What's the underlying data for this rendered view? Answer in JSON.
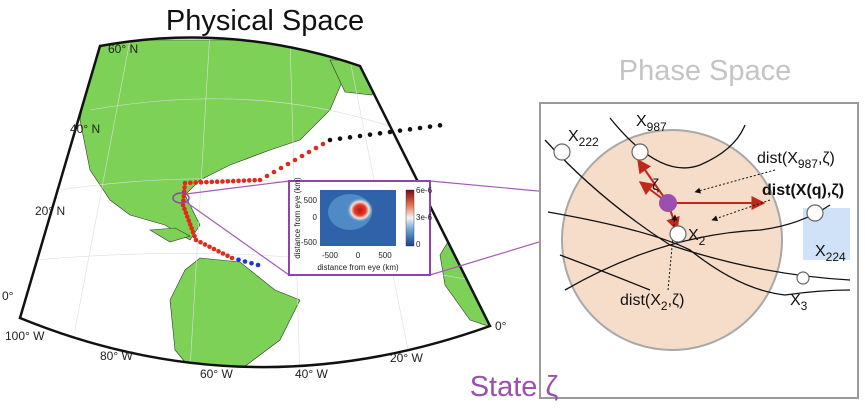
{
  "titles": {
    "physical": "Physical Space",
    "phase": "Phase Space",
    "state": "State ζ"
  },
  "map": {
    "lat_labels": [
      "60° N",
      "40° N",
      "20° N",
      "0°"
    ],
    "lon_labels": [
      "100° W",
      "80° W",
      "60° W",
      "40° W",
      "20° W",
      "0°"
    ]
  },
  "inset": {
    "x_label": "distance from eye (km)",
    "y_label": "distance from eye (km)",
    "x_ticks": [
      "-500",
      "0",
      "500"
    ],
    "y_ticks": [
      "500",
      "0",
      "-500"
    ],
    "colorbar_ticks": [
      "6e-6",
      "3e-6",
      "0"
    ]
  },
  "phase": {
    "center": "ζ",
    "points": [
      {
        "base": "X",
        "sub": "222"
      },
      {
        "base": "X",
        "sub": "987"
      },
      {
        "base": "X",
        "sub": "224"
      },
      {
        "base": "X",
        "sub": "2"
      },
      {
        "base": "X",
        "sub": "3"
      }
    ],
    "distances": [
      {
        "before": "dist(X",
        "sub": "987",
        "after": ",ζ)"
      },
      {
        "text": "dist(X(q),ζ)"
      },
      {
        "before": "dist(X",
        "sub": "2",
        "after": ",ζ)"
      }
    ]
  }
}
